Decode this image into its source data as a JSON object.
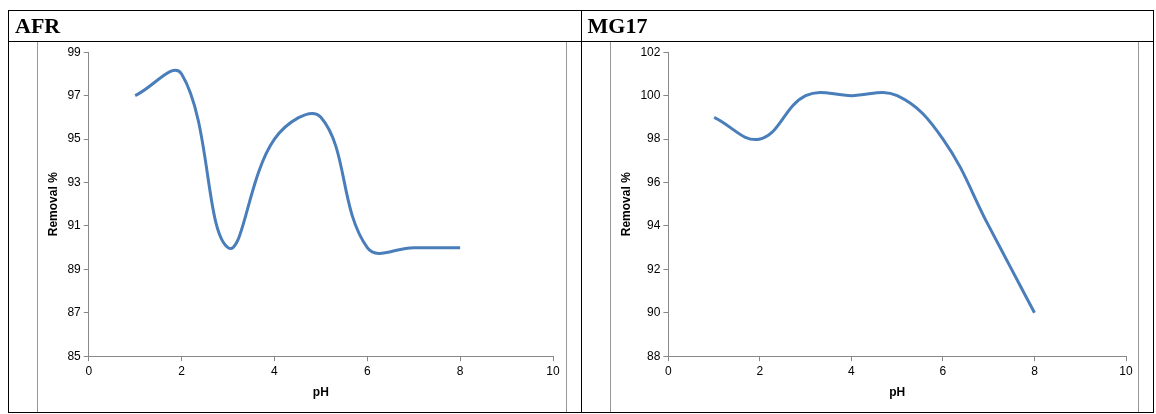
{
  "chart_data": [
    {
      "type": "line",
      "title": "AFR",
      "xlabel": "pH",
      "ylabel": "Removal %",
      "x": [
        1,
        2,
        3,
        4,
        5,
        6,
        7,
        8
      ],
      "series": [
        {
          "color": "#4a7ebb",
          "values": [
            97,
            98,
            90,
            95,
            96,
            90,
            90,
            90
          ]
        }
      ],
      "xlim": [
        0,
        10
      ],
      "xticks": [
        0,
        2,
        4,
        6,
        8,
        10
      ],
      "ylim": [
        85,
        99
      ],
      "yticks": [
        85,
        87,
        89,
        91,
        93,
        95,
        97,
        99
      ],
      "grid": false,
      "legend": false,
      "marker": "none",
      "line_style": "solid"
    },
    {
      "type": "line",
      "title": "MG17",
      "xlabel": "pH",
      "ylabel": "Removal %",
      "x": [
        1,
        2,
        3,
        4,
        5,
        6,
        7,
        8
      ],
      "series": [
        {
          "color": "#4a7ebb",
          "values": [
            99,
            98,
            100,
            100,
            100,
            98,
            94,
            90
          ]
        }
      ],
      "xlim": [
        0,
        10
      ],
      "xticks": [
        0,
        2,
        4,
        6,
        8,
        10
      ],
      "ylim": [
        88,
        102
      ],
      "yticks": [
        88,
        90,
        92,
        94,
        96,
        98,
        100,
        102
      ],
      "grid": false,
      "legend": false,
      "marker": "none",
      "line_style": "solid"
    }
  ]
}
